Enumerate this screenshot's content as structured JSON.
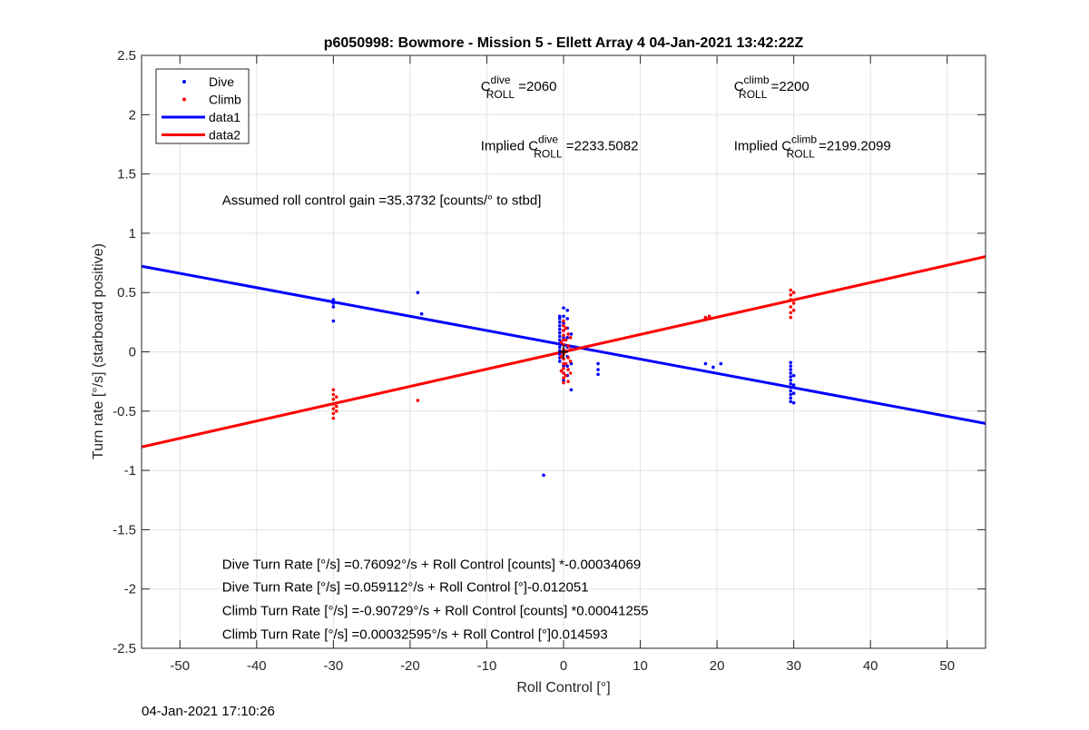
{
  "chart_data": {
    "type": "scatter",
    "title": "p6050998: Bowmore - Mission 5 - Ellett Array 4 04-Jan-2021 13:42:22Z",
    "xlabel": "Roll Control [°]",
    "ylabel": "Turn rate [°/s] (starboard positive)",
    "xlim": [
      -55,
      55
    ],
    "ylim": [
      -2.5,
      2.5
    ],
    "xticks": [
      -50,
      -40,
      -30,
      -20,
      -10,
      0,
      10,
      20,
      30,
      40,
      50
    ],
    "yticks": [
      -2.5,
      -2,
      -1.5,
      -1,
      -0.5,
      0,
      0.5,
      1,
      1.5,
      2,
      2.5
    ],
    "grid": true,
    "legend_position": "top-left",
    "legend": [
      "Dive",
      "Climb",
      "data1",
      "data2"
    ],
    "series": [
      {
        "name": "Dive",
        "kind": "points",
        "color": "#0000ff",
        "points": [
          [
            -30,
            0.44
          ],
          [
            -30,
            0.41
          ],
          [
            -30,
            0.38
          ],
          [
            -30,
            0.26
          ],
          [
            -19,
            0.5
          ],
          [
            -18.5,
            0.32
          ],
          [
            -0.5,
            0.3
          ],
          [
            -0.5,
            0.28
          ],
          [
            -0.5,
            0.25
          ],
          [
            -0.5,
            0.22
          ],
          [
            -0.5,
            0.19
          ],
          [
            -0.5,
            0.16
          ],
          [
            -0.5,
            0.13
          ],
          [
            -0.5,
            0.1
          ],
          [
            -0.5,
            0.07
          ],
          [
            -0.5,
            0.04
          ],
          [
            -0.5,
            0.01
          ],
          [
            -0.5,
            -0.02
          ],
          [
            -0.5,
            -0.05
          ],
          [
            -0.5,
            -0.08
          ],
          [
            0,
            0.37
          ],
          [
            0,
            0.3
          ],
          [
            0,
            0.24
          ],
          [
            0,
            0.18
          ],
          [
            0,
            0.12
          ],
          [
            0,
            0.06
          ],
          [
            0,
            0.0
          ],
          [
            0,
            -0.06
          ],
          [
            0,
            -0.12
          ],
          [
            0,
            -0.18
          ],
          [
            0,
            -0.24
          ],
          [
            0.5,
            0.35
          ],
          [
            0.5,
            0.28
          ],
          [
            0.5,
            0.2
          ],
          [
            0.5,
            0.12
          ],
          [
            0.5,
            0.04
          ],
          [
            0.5,
            -0.04
          ],
          [
            0.5,
            -0.12
          ],
          [
            0.5,
            -0.2
          ],
          [
            1,
            0.15
          ],
          [
            1,
            -0.1
          ],
          [
            1,
            -0.32
          ],
          [
            -2.6,
            -1.04
          ],
          [
            4.5,
            -0.1
          ],
          [
            4.5,
            -0.15
          ],
          [
            4.5,
            -0.19
          ],
          [
            18.5,
            -0.1
          ],
          [
            19.5,
            -0.13
          ],
          [
            20.5,
            -0.1
          ],
          [
            29.6,
            -0.09
          ],
          [
            29.6,
            -0.12
          ],
          [
            29.6,
            -0.15
          ],
          [
            29.6,
            -0.18
          ],
          [
            29.6,
            -0.21
          ],
          [
            29.6,
            -0.24
          ],
          [
            29.6,
            -0.27
          ],
          [
            29.6,
            -0.3
          ],
          [
            29.6,
            -0.33
          ],
          [
            29.6,
            -0.36
          ],
          [
            29.6,
            -0.39
          ],
          [
            29.6,
            -0.42
          ],
          [
            30,
            -0.2
          ],
          [
            30,
            -0.28
          ],
          [
            30,
            -0.35
          ],
          [
            30,
            -0.43
          ]
        ]
      },
      {
        "name": "Climb",
        "kind": "points",
        "color": "#ff0000",
        "points": [
          [
            -30,
            -0.32
          ],
          [
            -30,
            -0.36
          ],
          [
            -30,
            -0.4
          ],
          [
            -30,
            -0.44
          ],
          [
            -30,
            -0.48
          ],
          [
            -30,
            -0.52
          ],
          [
            -30,
            -0.56
          ],
          [
            -29.6,
            -0.38
          ],
          [
            -29.6,
            -0.46
          ],
          [
            -29.6,
            -0.5
          ],
          [
            -19,
            -0.41
          ],
          [
            0,
            0.26
          ],
          [
            0,
            0.22
          ],
          [
            0,
            0.18
          ],
          [
            0,
            0.14
          ],
          [
            0,
            0.1
          ],
          [
            0,
            0.06
          ],
          [
            0,
            0.02
          ],
          [
            0,
            -0.02
          ],
          [
            0,
            -0.06
          ],
          [
            0,
            -0.1
          ],
          [
            0,
            -0.14
          ],
          [
            0,
            -0.18
          ],
          [
            0,
            -0.22
          ],
          [
            0,
            -0.26
          ],
          [
            0.3,
            0.2
          ],
          [
            0.3,
            0.1
          ],
          [
            0.3,
            0.0
          ],
          [
            0.3,
            -0.1
          ],
          [
            0.3,
            -0.2
          ],
          [
            0.6,
            0.15
          ],
          [
            0.6,
            0.05
          ],
          [
            0.6,
            -0.05
          ],
          [
            0.6,
            -0.15
          ],
          [
            0.6,
            -0.25
          ],
          [
            0.9,
            0.12
          ],
          [
            0.9,
            0.02
          ],
          [
            0.9,
            -0.08
          ],
          [
            0.9,
            -0.18
          ],
          [
            -0.3,
            0.08
          ],
          [
            -0.3,
            -0.04
          ],
          [
            -0.3,
            -0.16
          ],
          [
            18.5,
            0.29
          ],
          [
            19,
            0.3
          ],
          [
            29.6,
            0.52
          ],
          [
            29.6,
            0.48
          ],
          [
            29.6,
            0.44
          ],
          [
            29.6,
            0.38
          ],
          [
            29.6,
            0.33
          ],
          [
            29.6,
            0.29
          ],
          [
            30,
            0.5
          ],
          [
            30,
            0.41
          ],
          [
            30,
            0.35
          ]
        ]
      },
      {
        "name": "data1",
        "kind": "line",
        "color": "#0000ff",
        "intercept": 0.059112,
        "slope": -0.012051
      },
      {
        "name": "data2",
        "kind": "line",
        "color": "#ff0000",
        "intercept": 0.00032595,
        "slope": 0.014593
      }
    ],
    "annotations": [
      {
        "prefix": "C",
        "sup": "dive",
        "sub": "ROLL",
        "suffix": " =2060",
        "x": -10.8,
        "y": 2.2
      },
      {
        "prefix": "C",
        "sup": "climb",
        "sub": "ROLL",
        "suffix": " =2200",
        "x": 22.2,
        "y": 2.2
      },
      {
        "prefix": "Implied C",
        "sup": "dive",
        "sub": "ROLL",
        "suffix": " =2233.5082",
        "x": -10.8,
        "y": 1.7
      },
      {
        "prefix": "Implied C",
        "sup": "climb",
        "sub": "ROLL",
        "suffix": " =2199.2099",
        "x": 22.2,
        "y": 1.7
      },
      {
        "text": "Assumed roll control gain =35.3732 [counts/° to stbd]",
        "x": -44.5,
        "y": 1.24
      },
      {
        "text": "Dive Turn Rate [°/s] =0.76092°/s + Roll Control [counts] *-0.00034069",
        "x": -44.5,
        "y": -1.83
      },
      {
        "text": "Dive Turn Rate [°/s] =0.059112°/s + Roll Control [°]-0.012051",
        "x": -44.5,
        "y": -2.02
      },
      {
        "text": "Climb Turn Rate [°/s] =-0.90729°/s + Roll Control [counts] *0.00041255",
        "x": -44.5,
        "y": -2.22
      },
      {
        "text": "Climb Turn Rate [°/s] =0.00032595°/s + Roll Control [°]0.014593",
        "x": -44.5,
        "y": -2.42
      }
    ]
  },
  "footer": {
    "timestamp": "04-Jan-2021 17:10:26"
  }
}
